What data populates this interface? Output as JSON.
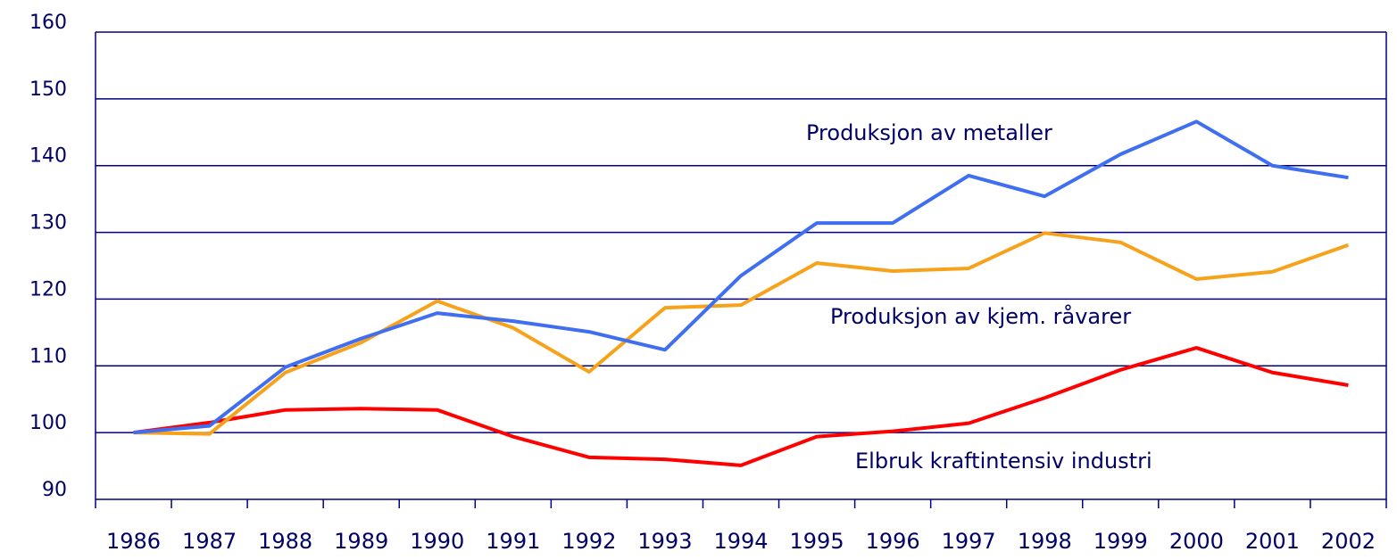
{
  "chart_data": {
    "type": "line",
    "categories": [
      "1986",
      "1987",
      "1988",
      "1989",
      "1990",
      "1991",
      "1992",
      "1993",
      "1994",
      "1995",
      "1996",
      "1997",
      "1998",
      "1999",
      "2000",
      "2001",
      "2002"
    ],
    "series": [
      {
        "name": "Produksjon av metaller",
        "color": "#3f6ff0",
        "values": [
          100,
          101,
          109.8,
          114.1,
          117.9,
          116.7,
          115.1,
          112.4,
          123.5,
          131.4,
          131.4,
          138.5,
          135.4,
          141.7,
          146.6,
          140,
          138.2
        ]
      },
      {
        "name": "Produksjon av kjem. råvarer",
        "color": "#f7a21b",
        "values": [
          100,
          99.8,
          109,
          113.5,
          119.7,
          115.7,
          109.1,
          118.7,
          119.1,
          125.4,
          124.2,
          124.6,
          129.9,
          128.5,
          123,
          124.1,
          128.1
        ]
      },
      {
        "name": "Elbruk kraftintensiv industri",
        "color": "#ff0000",
        "values": [
          100,
          101.5,
          103.4,
          103.6,
          103.4,
          99.4,
          96.3,
          96,
          95.1,
          99.4,
          100.2,
          101.4,
          105.2,
          109.4,
          112.7,
          109,
          107.1
        ]
      }
    ],
    "ylim": [
      90,
      160
    ],
    "yticks": [
      90,
      100,
      110,
      120,
      130,
      140,
      150,
      160
    ],
    "grid": true
  }
}
